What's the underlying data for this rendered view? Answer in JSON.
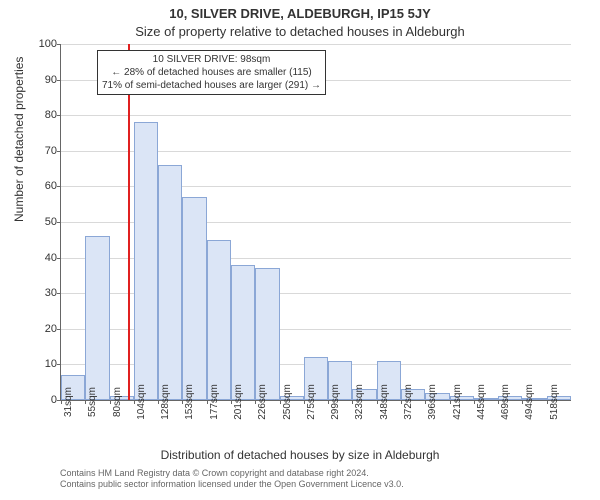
{
  "title_line1": "10, SILVER DRIVE, ALDEBURGH, IP15 5JY",
  "title_line2": "Size of property relative to detached houses in Aldeburgh",
  "ylabel": "Number of detached properties",
  "xlabel": "Distribution of detached houses by size in Aldeburgh",
  "footer_line1": "Contains HM Land Registry data © Crown copyright and database right 2024.",
  "footer_line2": "Contains public sector information licensed under the Open Government Licence v3.0.",
  "annotation": {
    "line1": "10 SILVER DRIVE: 98sqm",
    "line2": "← 28% of detached houses are smaller (115)",
    "line3": "71% of semi-detached houses are larger (291) →"
  },
  "chart": {
    "type": "histogram",
    "ylim": [
      0,
      100
    ],
    "ytick_step": 10,
    "x_start": 31,
    "x_step": 24.35,
    "x_unit": "sqm",
    "n_bars": 21,
    "values": [
      7,
      46,
      1,
      78,
      66,
      57,
      45,
      38,
      37,
      1,
      12,
      11,
      3,
      11,
      3,
      2,
      1,
      0,
      1,
      0,
      1
    ],
    "marker_value": 98,
    "bar_fill": "#dbe5f6",
    "bar_border": "#8ba7d6",
    "grid_color": "#d9d9d9",
    "axis_color": "#666666",
    "marker_color": "#e02020",
    "background": "#ffffff",
    "title_fontsize": 13,
    "label_fontsize": 12,
    "tick_fontsize": 11,
    "annot_fontsize": 10
  }
}
